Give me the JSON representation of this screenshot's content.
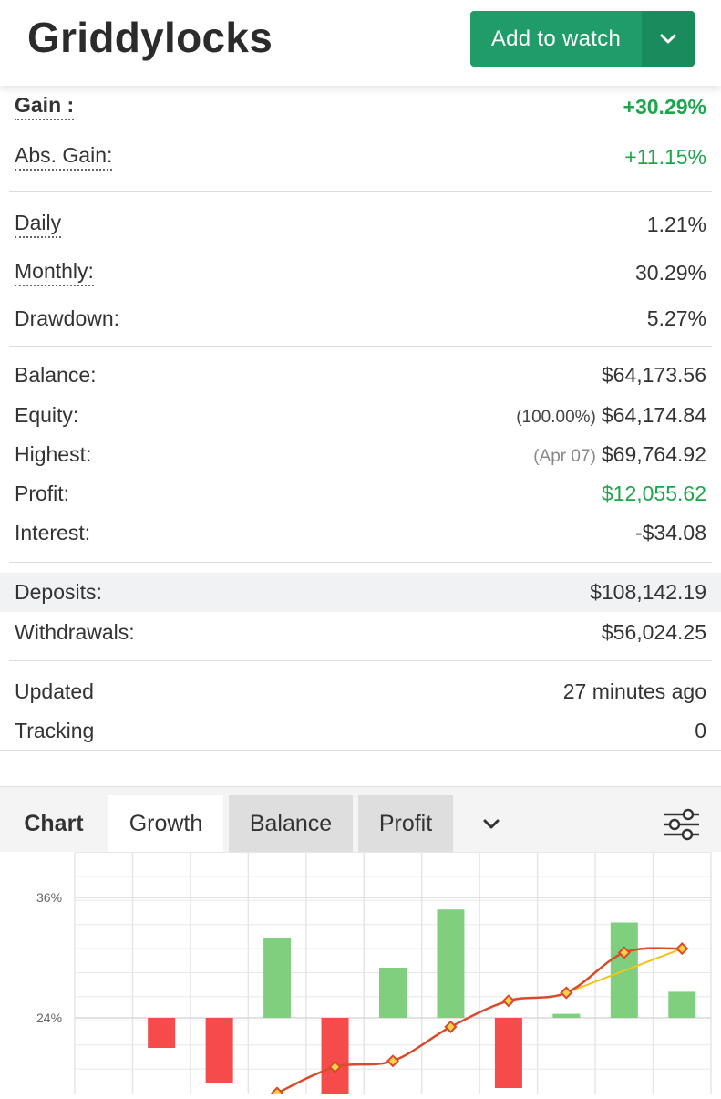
{
  "header": {
    "title": "Griddylocks",
    "watch_label": "Add to watch",
    "caret_icon": "chevron-down-icon"
  },
  "stats": {
    "gain_label": "Gain :",
    "gain_value": "+30.29%",
    "abs_gain_label": "Abs. Gain:",
    "abs_gain_value": "+11.15%",
    "daily_label": "Daily",
    "daily_value": "1.21%",
    "monthly_label": "Monthly:",
    "monthly_value": "30.29%",
    "drawdown_label": "Drawdown:",
    "drawdown_value": "5.27%",
    "balance_label": "Balance:",
    "balance_value": "$64,173.56",
    "equity_label": "Equity:",
    "equity_pct": "(100.00%)",
    "equity_value": "$64,174.84",
    "highest_label": "Highest:",
    "highest_date": "(Apr 07)",
    "highest_value": "$69,764.92",
    "profit_label": "Profit:",
    "profit_value": "$12,055.62",
    "interest_label": "Interest:",
    "interest_value": "-$34.08",
    "deposits_label": "Deposits:",
    "deposits_value": "$108,142.19",
    "withdrawals_label": "Withdrawals:",
    "withdrawals_value": "$56,024.25",
    "updated_label": "Updated",
    "updated_value": "27 minutes ago",
    "tracking_label": "Tracking",
    "tracking_value": "0"
  },
  "tabs": {
    "chart": "Chart",
    "growth": "Growth",
    "balance": "Balance",
    "profit": "Profit",
    "more_icon": "chevron-down-icon",
    "settings_icon": "sliders-icon",
    "active": "Growth"
  },
  "colors": {
    "accent": "#1f9c68",
    "positive": "#1aa64a",
    "bar_positive": "#7fcf7f",
    "bar_negative": "#f54b4b",
    "line_growth": "#d94a2a",
    "line_trend": "#f2c21b"
  },
  "chart_data": {
    "type": "bar",
    "y_tick_labels": [
      "36%",
      "24%"
    ],
    "y_ticks": [
      36,
      24
    ],
    "ylim": [
      18.5,
      40.5
    ],
    "grid": true,
    "series": [
      {
        "kind": "bar",
        "values": [
          null,
          -3.0,
          -6.5,
          8.0,
          -9.0,
          5.0,
          10.8,
          -7.0,
          0.4,
          9.5,
          2.6
        ]
      },
      {
        "kind": "line",
        "values": [
          null,
          null,
          null,
          16.5,
          19.1,
          19.7,
          23.1,
          25.7,
          26.5,
          30.5,
          30.9
        ]
      },
      {
        "kind": "line",
        "values": [
          null,
          null,
          null,
          null,
          null,
          null,
          null,
          null,
          26.5,
          null,
          30.9
        ]
      }
    ]
  }
}
